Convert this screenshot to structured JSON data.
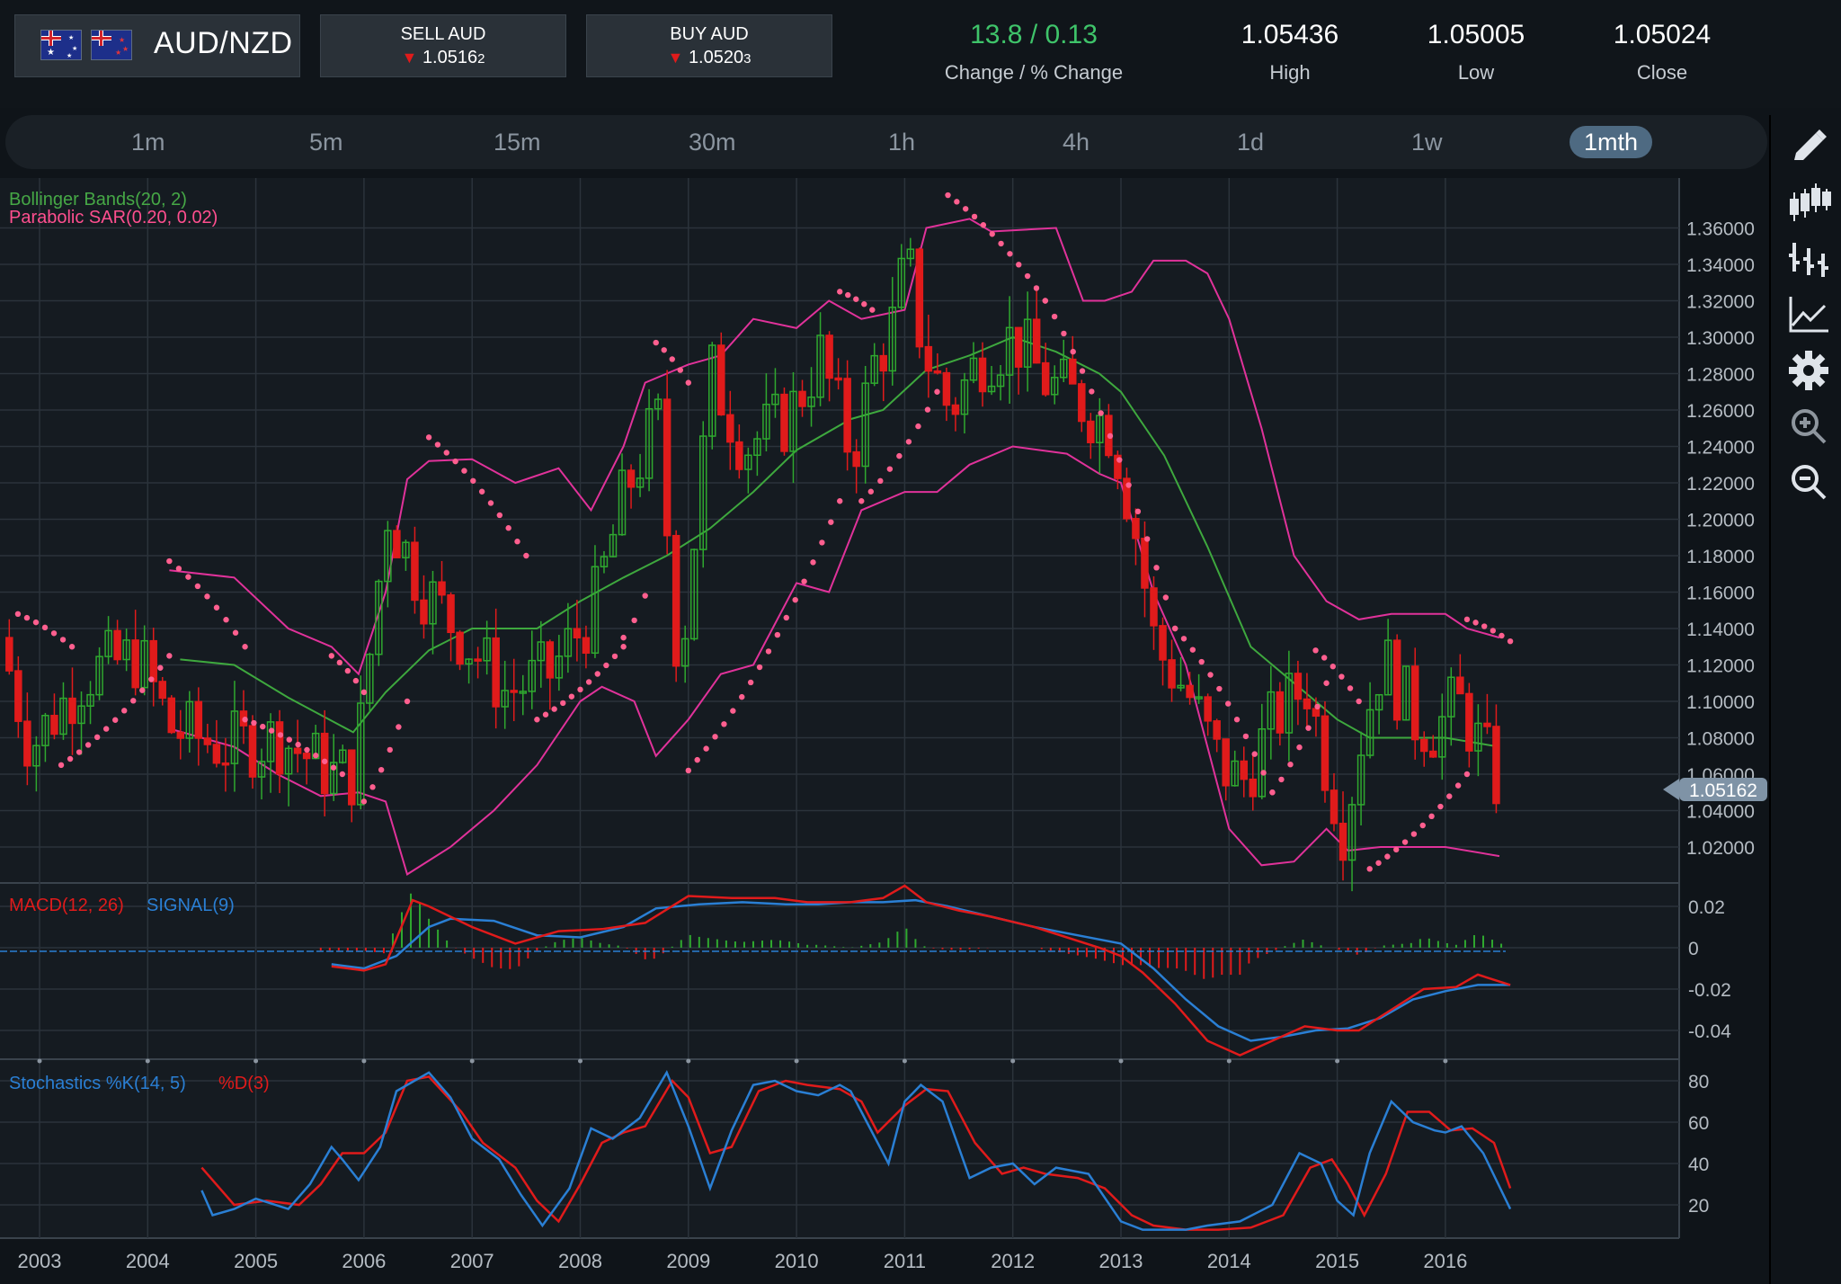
{
  "header": {
    "pair": "AUD/NZD",
    "sell": {
      "label": "SELL AUD",
      "price_main": "1.0516",
      "price_small": "2"
    },
    "buy": {
      "label": "BUY AUD",
      "price_main": "1.0520",
      "price_small": "3"
    },
    "change": {
      "value": "13.8 / 0.13",
      "label": "Change / % Change",
      "color": "#3fc46a"
    },
    "high": {
      "value": "1.05436",
      "label": "High"
    },
    "low": {
      "value": "1.05005",
      "label": "Low"
    },
    "close": {
      "value": "1.05024",
      "label": "Close"
    }
  },
  "timeframes": [
    "1m",
    "5m",
    "15m",
    "30m",
    "1h",
    "4h",
    "1d",
    "1w",
    "1mth"
  ],
  "active_timeframe": "1mth",
  "sidebar_icons": [
    "pencil-icon",
    "candlestick-icon",
    "bar-chart-icon",
    "line-chart-icon",
    "gear-icon",
    "zoom-in-icon",
    "zoom-out-icon"
  ],
  "colors": {
    "up": "#2fa82f",
    "down": "#e01b1b",
    "bollinger": "#e0329a",
    "bollinger_mid": "#3ea83e",
    "sar": "#ff5f8f",
    "macd": "#e01b1b",
    "signal": "#2a7fd4",
    "stoch_k": "#2a7fd4",
    "stoch_d": "#e01b1b"
  },
  "chart_data": [
    {
      "type": "candlestick",
      "title": "AUD/NZD monthly",
      "legend": [
        "Bollinger Bands(20, 2)",
        "Parabolic SAR(0.20, 0.02)"
      ],
      "x_ticks": [
        "2003",
        "2004",
        "2005",
        "2006",
        "2007",
        "2008",
        "2009",
        "2010",
        "2011",
        "2012",
        "2013",
        "2014",
        "2015",
        "2016"
      ],
      "y_ticks": [
        "1.02000",
        "1.04000",
        "1.06000",
        "1.08000",
        "1.10000",
        "1.12000",
        "1.14000",
        "1.16000",
        "1.18000",
        "1.20000",
        "1.22000",
        "1.24000",
        "1.26000",
        "1.28000",
        "1.30000",
        "1.32000",
        "1.34000",
        "1.36000"
      ],
      "ylim": [
        0.997,
        1.382
      ],
      "xlim": [
        2002.72,
        2017.2
      ],
      "current_price": "1.05162",
      "close_path": {
        "x": [
          2002.72,
          2003.0,
          2003.5,
          2004.0,
          2004.3,
          2004.8,
          2005.3,
          2005.8,
          2006.0,
          2006.3,
          2006.6,
          2007.0,
          2007.4,
          2007.8,
          2008.2,
          2008.5,
          2008.8,
          2009.0,
          2009.3,
          2009.6,
          2010.0,
          2010.3,
          2010.6,
          2010.8,
          2011.0,
          2011.1,
          2011.25,
          2011.5,
          2011.8,
          2012.1,
          2012.4,
          2012.7,
          2013.0,
          2013.2,
          2013.4,
          2013.7,
          2014.0,
          2014.2,
          2014.5,
          2014.8,
          2015.0,
          2015.15,
          2015.3,
          2015.5,
          2015.8,
          2016.0,
          2016.2,
          2016.45,
          2016.6
        ],
        "y": [
          1.135,
          1.075,
          1.115,
          1.125,
          1.085,
          1.075,
          1.08,
          1.06,
          1.06,
          1.205,
          1.165,
          1.135,
          1.105,
          1.115,
          1.15,
          1.215,
          1.255,
          1.115,
          1.28,
          1.24,
          1.255,
          1.29,
          1.235,
          1.285,
          1.31,
          1.345,
          1.295,
          1.26,
          1.29,
          1.3,
          1.275,
          1.265,
          1.25,
          1.2,
          1.13,
          1.105,
          1.065,
          1.055,
          1.09,
          1.11,
          1.06,
          1.03,
          1.08,
          1.125,
          1.09,
          1.085,
          1.1,
          1.07,
          1.051
        ]
      },
      "bollinger_upper": {
        "x": [
          2004.2,
          2004.8,
          2005.3,
          2005.7,
          2005.95,
          2006.2,
          2006.4,
          2006.6,
          2007.0,
          2007.4,
          2007.8,
          2008.1,
          2008.4,
          2008.6,
          2009.0,
          2009.3,
          2009.6,
          2010.0,
          2010.3,
          2010.6,
          2011.0,
          2011.2,
          2011.6,
          2011.8,
          2012.4,
          2012.65,
          2012.85,
          2013.1,
          2013.3,
          2013.6,
          2013.8,
          2014.0,
          2014.3,
          2014.6,
          2014.9,
          2015.2,
          2015.5,
          2016.0,
          2016.2,
          2016.5
        ],
        "y": [
          1.172,
          1.168,
          1.14,
          1.13,
          1.115,
          1.16,
          1.222,
          1.232,
          1.233,
          1.22,
          1.228,
          1.205,
          1.24,
          1.275,
          1.285,
          1.29,
          1.31,
          1.305,
          1.32,
          1.31,
          1.315,
          1.36,
          1.365,
          1.358,
          1.36,
          1.32,
          1.32,
          1.325,
          1.342,
          1.342,
          1.335,
          1.31,
          1.25,
          1.18,
          1.155,
          1.145,
          1.148,
          1.148,
          1.14,
          1.135
        ]
      },
      "bollinger_lower": {
        "x": [
          2004.2,
          2004.8,
          2005.2,
          2005.6,
          2005.95,
          2006.2,
          2006.4,
          2006.8,
          2007.2,
          2007.6,
          2008.0,
          2008.2,
          2008.5,
          2008.7,
          2009.0,
          2009.3,
          2009.6,
          2010.0,
          2010.3,
          2010.6,
          2011.0,
          2011.3,
          2011.6,
          2012.0,
          2012.5,
          2012.8,
          2013.0,
          2013.3,
          2013.6,
          2014.0,
          2014.3,
          2014.6,
          2014.9,
          2015.1,
          2015.4,
          2016.0,
          2016.5
        ],
        "y": [
          1.085,
          1.075,
          1.06,
          1.048,
          1.05,
          1.045,
          1.005,
          1.02,
          1.04,
          1.065,
          1.1,
          1.108,
          1.1,
          1.07,
          1.09,
          1.115,
          1.12,
          1.165,
          1.16,
          1.205,
          1.215,
          1.215,
          1.23,
          1.24,
          1.236,
          1.225,
          1.22,
          1.16,
          1.12,
          1.03,
          1.01,
          1.012,
          1.03,
          1.018,
          1.02,
          1.02,
          1.015
        ]
      },
      "bollinger_middle": {
        "x": [
          2004.3,
          2004.8,
          2005.3,
          2005.9,
          2006.2,
          2006.6,
          2007.0,
          2007.6,
          2008.0,
          2008.4,
          2008.8,
          2009.2,
          2009.6,
          2010.0,
          2010.5,
          2010.8,
          2011.2,
          2011.6,
          2012.0,
          2012.4,
          2012.8,
          2013.0,
          2013.4,
          2013.8,
          2014.2,
          2014.6,
          2015.0,
          2015.3,
          2015.6,
          2016.0,
          2016.5
        ],
        "y": [
          1.123,
          1.12,
          1.102,
          1.083,
          1.105,
          1.128,
          1.14,
          1.14,
          1.155,
          1.168,
          1.18,
          1.195,
          1.215,
          1.238,
          1.255,
          1.26,
          1.282,
          1.29,
          1.3,
          1.292,
          1.28,
          1.27,
          1.235,
          1.185,
          1.13,
          1.11,
          1.09,
          1.08,
          1.08,
          1.08,
          1.075
        ]
      },
      "sar_segments": [
        {
          "x0": 2002.8,
          "x1": 2003.3,
          "y0": 1.148,
          "y1": 1.13
        },
        {
          "x0": 2003.2,
          "x1": 2004.2,
          "y0": 1.065,
          "y1": 1.125
        },
        {
          "x0": 2004.2,
          "x1": 2004.9,
          "y0": 1.177,
          "y1": 1.13
        },
        {
          "x0": 2004.9,
          "x1": 2005.8,
          "y0": 1.09,
          "y1": 1.06
        },
        {
          "x0": 2005.7,
          "x1": 2006.0,
          "y0": 1.125,
          "y1": 1.105
        },
        {
          "x0": 2006.0,
          "x1": 2006.4,
          "y0": 1.045,
          "y1": 1.1
        },
        {
          "x0": 2006.6,
          "x1": 2007.5,
          "y0": 1.245,
          "y1": 1.18
        },
        {
          "x0": 2007.6,
          "x1": 2008.4,
          "y0": 1.09,
          "y1": 1.13
        },
        {
          "x0": 2008.4,
          "x1": 2008.6,
          "y0": 1.135,
          "y1": 1.158
        },
        {
          "x0": 2008.7,
          "x1": 2009.0,
          "y0": 1.297,
          "y1": 1.275
        },
        {
          "x0": 2009.0,
          "x1": 2010.4,
          "y0": 1.062,
          "y1": 1.21
        },
        {
          "x0": 2010.4,
          "x1": 2010.7,
          "y0": 1.325,
          "y1": 1.315
        },
        {
          "x0": 2010.6,
          "x1": 2011.3,
          "y0": 1.21,
          "y1": 1.27
        },
        {
          "x0": 2011.4,
          "x1": 2012.3,
          "y0": 1.378,
          "y1": 1.32
        },
        {
          "x0": 2012.3,
          "x1": 2013.5,
          "y0": 1.32,
          "y1": 1.14
        },
        {
          "x0": 2013.5,
          "x1": 2014.4,
          "y0": 1.14,
          "y1": 1.05
        },
        {
          "x0": 2014.4,
          "x1": 2014.9,
          "y0": 1.05,
          "y1": 1.11
        },
        {
          "x0": 2014.8,
          "x1": 2015.2,
          "y0": 1.128,
          "y1": 1.1
        },
        {
          "x0": 2015.3,
          "x1": 2016.2,
          "y0": 1.008,
          "y1": 1.06
        },
        {
          "x0": 2016.2,
          "x1": 2016.6,
          "y0": 1.145,
          "y1": 1.133
        }
      ]
    },
    {
      "type": "line",
      "title": "MACD(12, 26) SIGNAL(9)",
      "legend": [
        "MACD(12, 26)",
        "SIGNAL(9)"
      ],
      "y_ticks": [
        "0.02",
        "0",
        "-0.02",
        "-0.04"
      ],
      "ylim": [
        -0.055,
        0.034
      ],
      "series": [
        {
          "name": "MACD(12, 26)",
          "x": [
            2005.7,
            2006.0,
            2006.2,
            2006.45,
            2006.6,
            2007.0,
            2007.4,
            2007.8,
            2008.2,
            2008.6,
            2009.0,
            2009.4,
            2009.8,
            2010.1,
            2010.5,
            2010.8,
            2011.0,
            2011.2,
            2011.5,
            2011.8,
            2012.2,
            2012.5,
            2012.8,
            2013.0,
            2013.2,
            2013.5,
            2013.8,
            2014.1,
            2014.4,
            2014.7,
            2015.0,
            2015.2,
            2015.5,
            2015.8,
            2016.1,
            2016.3,
            2016.6
          ],
          "y": [
            -0.009,
            -0.011,
            -0.008,
            0.023,
            0.02,
            0.01,
            0.002,
            0.008,
            0.009,
            0.012,
            0.025,
            0.024,
            0.024,
            0.022,
            0.022,
            0.024,
            0.03,
            0.022,
            0.018,
            0.015,
            0.01,
            0.005,
            0.0,
            -0.004,
            -0.012,
            -0.027,
            -0.045,
            -0.052,
            -0.045,
            -0.038,
            -0.04,
            -0.04,
            -0.03,
            -0.02,
            -0.019,
            -0.013,
            -0.018
          ]
        },
        {
          "name": "SIGNAL(9)",
          "x": [
            2005.7,
            2006.0,
            2006.3,
            2006.6,
            2006.8,
            2007.2,
            2007.6,
            2008.0,
            2008.4,
            2008.7,
            2009.1,
            2009.5,
            2009.9,
            2010.2,
            2010.5,
            2010.8,
            2011.1,
            2011.4,
            2011.8,
            2012.2,
            2012.6,
            2013.0,
            2013.3,
            2013.6,
            2013.9,
            2014.2,
            2014.5,
            2014.8,
            2015.1,
            2015.4,
            2015.7,
            2016.0,
            2016.3,
            2016.6
          ],
          "y": [
            -0.008,
            -0.01,
            -0.004,
            0.01,
            0.014,
            0.013,
            0.006,
            0.005,
            0.01,
            0.019,
            0.021,
            0.022,
            0.021,
            0.021,
            0.022,
            0.022,
            0.023,
            0.02,
            0.015,
            0.01,
            0.006,
            0.002,
            -0.01,
            -0.025,
            -0.038,
            -0.045,
            -0.043,
            -0.04,
            -0.039,
            -0.034,
            -0.025,
            -0.021,
            -0.018,
            -0.018
          ]
        }
      ]
    },
    {
      "type": "line",
      "title": "Stochastics %K(14, 5) %D(3)",
      "legend": [
        "Stochastics %K(14, 5)",
        "%D(3)"
      ],
      "y_ticks": [
        "80",
        "60",
        "40",
        "20"
      ],
      "ylim": [
        5,
        88
      ],
      "series": [
        {
          "name": "Stochastics %K(14, 5)",
          "x": [
            2004.5,
            2004.6,
            2004.8,
            2005.0,
            2005.3,
            2005.5,
            2005.7,
            2005.8,
            2005.95,
            2006.15,
            2006.3,
            2006.6,
            2006.8,
            2007.0,
            2007.25,
            2007.45,
            2007.65,
            2007.9,
            2008.1,
            2008.3,
            2008.55,
            2008.8,
            2009.0,
            2009.2,
            2009.4,
            2009.6,
            2009.8,
            2010.0,
            2010.2,
            2010.4,
            2010.5,
            2010.65,
            2010.85,
            2011.0,
            2011.15,
            2011.35,
            2011.6,
            2011.8,
            2012.0,
            2012.2,
            2012.4,
            2012.7,
            2013.0,
            2013.2,
            2013.4,
            2013.6,
            2013.8,
            2014.1,
            2014.4,
            2014.65,
            2014.85,
            2015.0,
            2015.15,
            2015.3,
            2015.5,
            2015.7,
            2015.9,
            2016.0,
            2016.15,
            2016.35,
            2016.6
          ],
          "y": [
            27,
            15,
            18,
            23,
            18,
            30,
            48,
            42,
            32,
            48,
            75,
            84,
            72,
            52,
            42,
            25,
            10,
            28,
            57,
            52,
            62,
            84,
            58,
            28,
            56,
            78,
            80,
            75,
            73,
            78,
            75,
            60,
            40,
            70,
            78,
            70,
            33,
            38,
            40,
            30,
            38,
            35,
            12,
            8,
            8,
            8,
            10,
            12,
            20,
            45,
            40,
            22,
            15,
            45,
            70,
            60,
            56,
            55,
            58,
            45,
            18
          ]
        },
        {
          "name": "%D(3)",
          "x": [
            2004.5,
            2004.8,
            2005.1,
            2005.4,
            2005.6,
            2005.8,
            2006.0,
            2006.2,
            2006.4,
            2006.6,
            2006.9,
            2007.1,
            2007.4,
            2007.6,
            2007.8,
            2008.0,
            2008.2,
            2008.4,
            2008.6,
            2008.85,
            2009.0,
            2009.2,
            2009.4,
            2009.65,
            2009.9,
            2010.1,
            2010.4,
            2010.6,
            2010.75,
            2011.0,
            2011.2,
            2011.4,
            2011.65,
            2011.9,
            2012.1,
            2012.3,
            2012.6,
            2012.85,
            2013.1,
            2013.3,
            2013.6,
            2013.9,
            2014.2,
            2014.5,
            2014.75,
            2014.95,
            2015.1,
            2015.25,
            2015.45,
            2015.65,
            2015.85,
            2016.05,
            2016.25,
            2016.45,
            2016.6
          ],
          "y": [
            38,
            20,
            22,
            20,
            30,
            45,
            45,
            55,
            80,
            82,
            65,
            50,
            38,
            22,
            12,
            30,
            50,
            55,
            58,
            80,
            72,
            45,
            48,
            75,
            80,
            78,
            76,
            70,
            55,
            68,
            76,
            75,
            50,
            35,
            38,
            35,
            33,
            28,
            15,
            10,
            8,
            8,
            9,
            15,
            38,
            42,
            30,
            15,
            35,
            65,
            65,
            56,
            57,
            50,
            28
          ]
        }
      ]
    }
  ]
}
